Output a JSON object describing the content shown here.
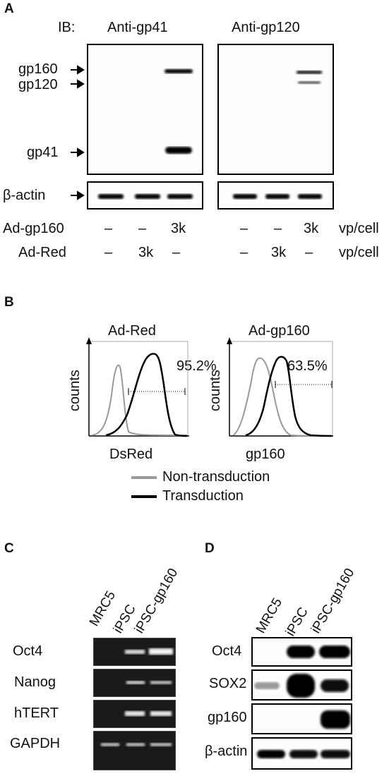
{
  "panelA": {
    "letter": "A",
    "ib_label": "IB:",
    "anti_gp41": "Anti-gp41",
    "anti_gp120": "Anti-gp120",
    "markers": [
      "gp160",
      "gp120",
      "gp41"
    ],
    "actin_label": "β-actin",
    "row1": {
      "name": "Ad-gp160",
      "left": [
        "–",
        "–",
        "3k"
      ],
      "right": [
        "–",
        "–",
        "3k"
      ],
      "unit": "vp/cell"
    },
    "row2": {
      "name": "Ad-Red",
      "left": [
        "–",
        "3k",
        "–"
      ],
      "right": [
        "–",
        "3k",
        "–"
      ],
      "unit": "vp/cell"
    }
  },
  "panelB": {
    "letter": "B",
    "left_title": "Ad-Red",
    "right_title": "Ad-gp160",
    "ylabel": "counts",
    "left_xlabel": "DsRed",
    "right_xlabel": "gp160",
    "left_pct": "95.2%",
    "right_pct": "63.5%",
    "legend": [
      {
        "label": "Non-transduction",
        "color": "#999999"
      },
      {
        "label": "Transduction",
        "color": "#000000"
      }
    ]
  },
  "panelC": {
    "letter": "C",
    "lanes": [
      "MRC5",
      "iPSC",
      "iPSC-gp160"
    ],
    "rows": [
      "Oct4",
      "Nanog",
      "hTERT",
      "GAPDH"
    ]
  },
  "panelD": {
    "letter": "D",
    "lanes": [
      "MRC5",
      "iPSC",
      "iPSC-gp160"
    ],
    "rows": [
      "Oct4",
      "SOX2",
      "gp160",
      "β-actin"
    ]
  }
}
